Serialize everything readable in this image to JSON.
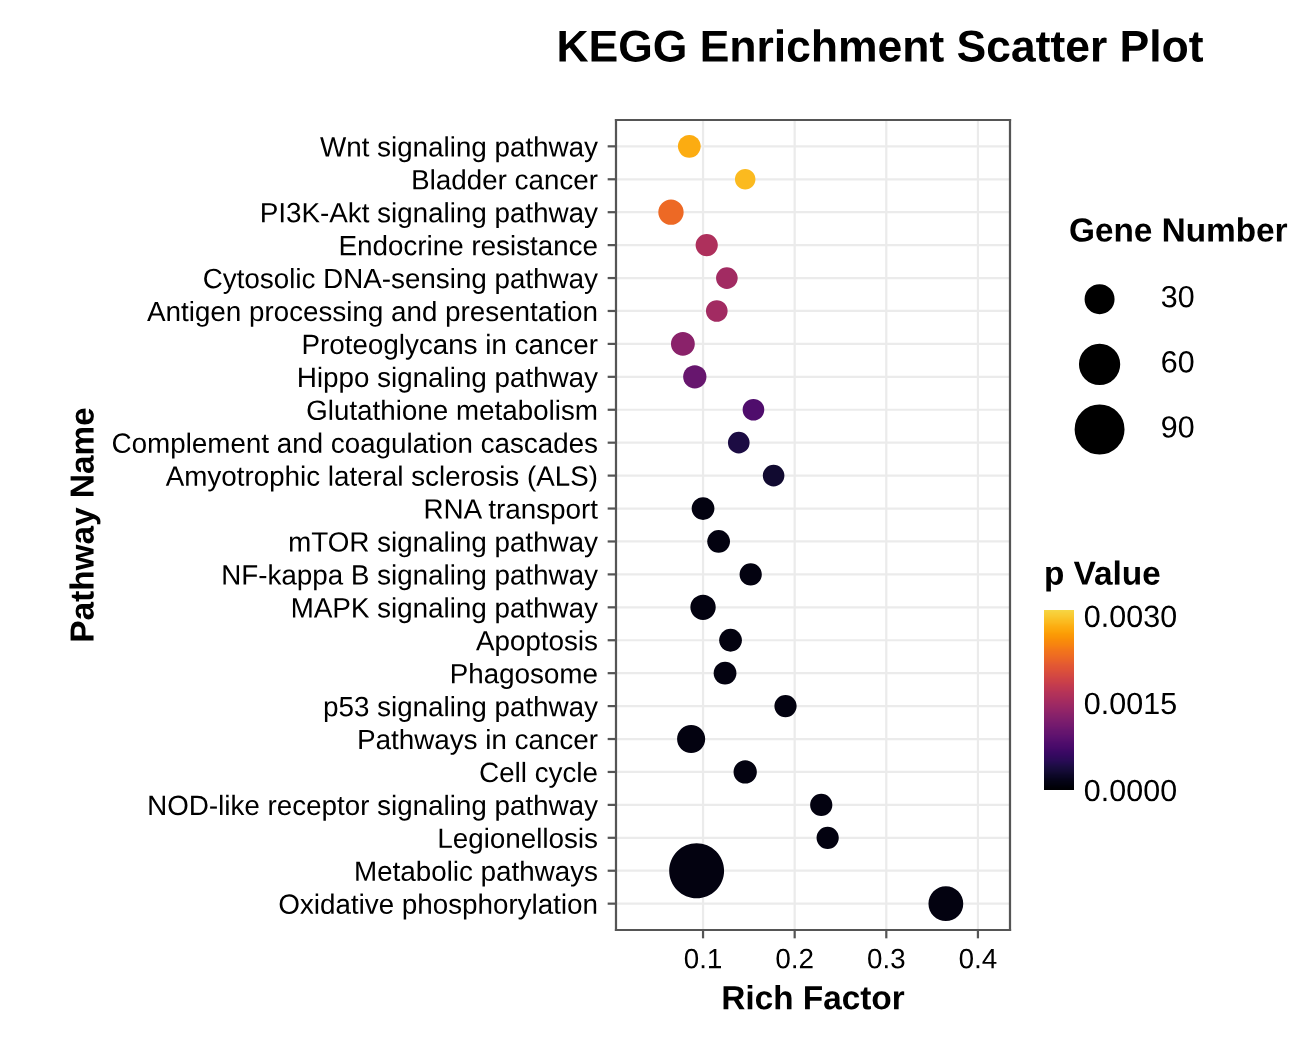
{
  "chart_data": {
    "type": "bubble",
    "title": "KEGG Enrichment Scatter Plot",
    "xlabel": "Rich Factor",
    "ylabel": "Pathway Name",
    "legend_title": "Gene Number",
    "clabel": "p Value",
    "categories": [
      "Wnt signaling pathway",
      "Bladder cancer",
      "PI3K-Akt signaling pathway",
      "Endocrine resistance",
      "Cytosolic DNA-sensing pathway",
      "Antigen processing and presentation",
      "Proteoglycans in cancer",
      "Hippo signaling pathway",
      "Glutathione metabolism",
      "Complement and coagulation cascades",
      "Amyotrophic lateral sclerosis (ALS)",
      "RNA transport",
      "mTOR signaling pathway",
      "NF-kappa B signaling pathway",
      "MAPK signaling pathway",
      "Apoptosis",
      "Phagosome",
      "p53 signaling pathway",
      "Pathways in cancer",
      "Cell cycle",
      "NOD-like receptor signaling pathway",
      "Legionellosis",
      "Metabolic pathways",
      "Oxidative phosphorylation"
    ],
    "values": [
      0.085,
      0.146,
      0.065,
      0.104,
      0.126,
      0.115,
      0.078,
      0.091,
      0.155,
      0.139,
      0.177,
      0.1,
      0.117,
      0.152,
      0.1,
      0.13,
      0.124,
      0.19,
      0.087,
      0.146,
      0.229,
      0.236,
      0.093,
      0.365
    ],
    "sizes": [
      21,
      17,
      26,
      20,
      19,
      19,
      23,
      22,
      19,
      19,
      19,
      21,
      21,
      20,
      26,
      21,
      21,
      20,
      32,
      22,
      20,
      20,
      122,
      49
    ],
    "cvalues": [
      0.0028,
      0.0029,
      0.0023,
      0.0016,
      0.0015,
      0.0015,
      0.0013,
      0.001,
      0.0008,
      0.0004,
      0.0003,
      0.0001,
      0.0001,
      0.0001,
      0.0001,
      0.0001,
      0.0001,
      0.0001,
      0.0001,
      0.0001,
      0.0001,
      0.0001,
      0.0001,
      0.0001
    ],
    "size_legend": [
      30,
      60,
      90
    ],
    "clim": [
      0,
      0.0031
    ],
    "cticks": [
      {
        "value": 0,
        "label": "0.0000"
      },
      {
        "value": 0.0015,
        "label": "0.0015"
      },
      {
        "value": 0.003,
        "label": "0.0030"
      }
    ],
    "xlim": [
      0.005,
      0.435
    ],
    "xticks": [
      0.1,
      0.2,
      0.3,
      0.4
    ],
    "grid": true,
    "orientation": "horizontal"
  }
}
